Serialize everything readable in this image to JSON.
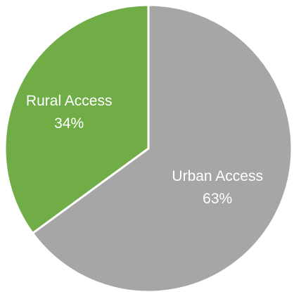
{
  "chart_data": {
    "type": "pie",
    "slices": [
      {
        "category": "Urban Access",
        "value": 63,
        "value_label": "63%",
        "color": "#a6a6a6"
      },
      {
        "category": "Rural Access",
        "value": 34,
        "value_label": "34%",
        "color": "#70ad47"
      }
    ],
    "start_angle_deg": 0,
    "direction": "clockwise",
    "legend": "none",
    "labels": "inside"
  }
}
